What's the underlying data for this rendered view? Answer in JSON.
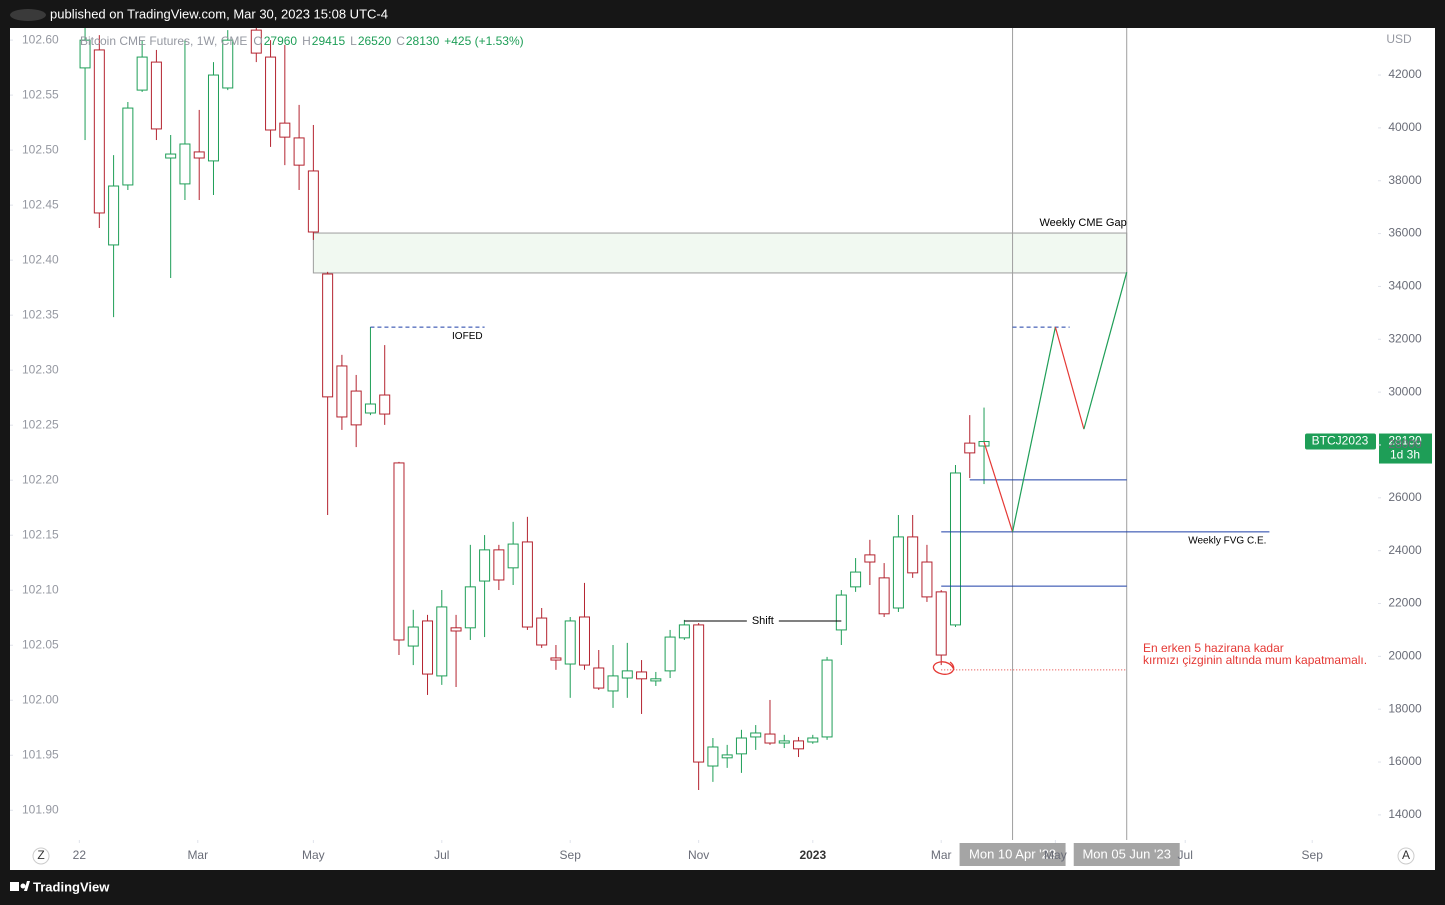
{
  "header": {
    "text": "published on TradingView.com, Mar 30, 2023 15:08 UTC-4"
  },
  "footer": {
    "brand": "TradingView"
  },
  "controls": {
    "left": "Z",
    "right": "A"
  },
  "chart_data": {
    "type": "candlestick",
    "name": "Bitcoin CME Futures, 1W, CME",
    "legend": {
      "ohlc": [
        {
          "label": "O",
          "value": 27960
        },
        {
          "label": "H",
          "value": 29415
        },
        {
          "label": "L",
          "value": 26520
        },
        {
          "label": "C",
          "value": 28130
        }
      ],
      "change": "+425 (+1.53%)"
    },
    "y_unit": "USD",
    "up_color": "#1e9e57",
    "down_color": "#b4232f",
    "x": [
      0,
      1,
      2,
      3,
      4,
      5,
      6,
      7,
      8,
      9,
      10,
      12,
      13,
      14,
      15,
      16,
      17,
      18,
      19,
      20,
      21,
      22,
      23,
      24,
      25,
      26,
      27,
      28,
      29,
      30,
      31,
      32,
      33,
      34,
      35,
      36,
      37,
      38,
      39,
      40,
      41,
      42,
      43,
      44,
      45,
      46,
      47,
      48,
      49,
      50,
      51,
      52,
      53,
      54,
      55,
      56,
      57,
      58,
      59,
      60,
      61,
      62,
      63
    ],
    "open": [
      42270,
      42950,
      35570,
      37840,
      41430,
      42490,
      38860,
      37880,
      39090,
      38750,
      41510,
      43700,
      42680,
      40180,
      39620,
      38370,
      34470,
      30990,
      30040,
      29210,
      29890,
      27320,
      20390,
      21340,
      19260,
      21080,
      21080,
      22850,
      24030,
      23350,
      24330,
      21450,
      19940,
      19710,
      21490,
      19560,
      18690,
      19180,
      19410,
      19070,
      19450,
      20700,
      21190,
      15850,
      16160,
      16310,
      16950,
      17060,
      16720,
      16800,
      16760,
      16950,
      21000,
      22630,
      23840,
      22970,
      21830,
      24520,
      23570,
      22440,
      21190,
      28070,
      27960
    ],
    "high": [
      43780,
      43510,
      38970,
      40980,
      43320,
      42950,
      39730,
      43320,
      40680,
      42490,
      43700,
      43780,
      43320,
      43140,
      40870,
      40110,
      34550,
      31410,
      30650,
      32460,
      31780,
      27360,
      21760,
      21570,
      22510,
      21570,
      24220,
      24590,
      24220,
      25090,
      25280,
      21830,
      20430,
      21490,
      22780,
      20240,
      20430,
      20510,
      19860,
      19410,
      21000,
      21380,
      21260,
      16910,
      16650,
      17220,
      17400,
      18350,
      17030,
      16950,
      17030,
      19980,
      22510,
      23720,
      24410,
      23530,
      25350,
      25350,
      24220,
      22510,
      27240,
      29130,
      29415
    ],
    "low": [
      39540,
      36210,
      32840,
      37650,
      41360,
      39540,
      34320,
      37270,
      37270,
      37460,
      41430,
      42490,
      39280,
      38590,
      37650,
      35760,
      25350,
      28570,
      27920,
      29130,
      28760,
      20050,
      19670,
      18540,
      18920,
      18840,
      20620,
      20730,
      22510,
      22700,
      21000,
      20320,
      19490,
      18430,
      19490,
      18730,
      18050,
      18430,
      17820,
      18880,
      19180,
      20620,
      14940,
      15250,
      15780,
      15590,
      16460,
      16650,
      16530,
      16190,
      16690,
      16840,
      20430,
      22440,
      22700,
      21490,
      21680,
      22970,
      22060,
      19670,
      21110,
      26750,
      26520
    ],
    "close": [
      43320,
      36780,
      37800,
      40750,
      42680,
      39960,
      39010,
      39390,
      38860,
      42000,
      43320,
      42830,
      39920,
      39650,
      38590,
      36060,
      29820,
      29060,
      28760,
      29550,
      29170,
      20620,
      21110,
      19330,
      21870,
      20960,
      22630,
      24030,
      22890,
      24250,
      21110,
      20430,
      19860,
      21340,
      19670,
      18800,
      19260,
      19450,
      19150,
      19150,
      20730,
      21190,
      16000,
      16570,
      16270,
      16910,
      17100,
      16720,
      16800,
      16500,
      16910,
      19860,
      22320,
      23190,
      23570,
      21610,
      24520,
      23160,
      22250,
      20050,
      26940,
      27700,
      28130
    ],
    "xlim": [
      -5.26,
      90.61
    ],
    "xticks": [
      {
        "value": -0.4,
        "label": "22"
      },
      {
        "value": 7.9,
        "label": "Mar"
      },
      {
        "value": 16,
        "label": "May"
      },
      {
        "value": 25,
        "label": "Jul"
      },
      {
        "value": 34,
        "label": "Sep"
      },
      {
        "value": 43,
        "label": "Nov"
      },
      {
        "value": 51,
        "label": "2023"
      },
      {
        "value": 60,
        "label": "Mar"
      },
      {
        "value": 68,
        "label": "May"
      },
      {
        "value": 77.1,
        "label": "Jul"
      },
      {
        "value": 86,
        "label": "Sep"
      }
    ],
    "ylim": [
      13050,
      43780
    ],
    "yticks": [
      14000,
      16000,
      18000,
      20000,
      22000,
      24000,
      26000,
      28000,
      30000,
      32000,
      34000,
      36000,
      38000,
      40000,
      42000
    ],
    "y2lim": [
      101.873,
      102.611
    ],
    "y2ticks": [
      {
        "value": 101.9,
        "label": "101.90"
      },
      {
        "value": 101.95,
        "label": "101.95"
      },
      {
        "value": 102.0,
        "label": "102.00"
      },
      {
        "value": 102.05,
        "label": "102.05"
      },
      {
        "value": 102.1,
        "label": "102.10"
      },
      {
        "value": 102.15,
        "label": "102.15"
      },
      {
        "value": 102.2,
        "label": "102.20"
      },
      {
        "value": 102.25,
        "label": "102.25"
      },
      {
        "value": 102.3,
        "label": "102.30"
      },
      {
        "value": 102.35,
        "label": "102.35"
      },
      {
        "value": 102.4,
        "label": "102.40"
      },
      {
        "value": 102.45,
        "label": "102.45"
      },
      {
        "value": 102.5,
        "label": "102.50"
      },
      {
        "value": 102.55,
        "label": "102.55"
      },
      {
        "value": 102.6,
        "label": "102.60"
      }
    ],
    "price_tag": {
      "symbol": "BTCJ2023",
      "countdown": "1d 3h",
      "color": "#1e9e57"
    },
    "drawings": {
      "cme_gap": {
        "label": "Weekly CME Gap",
        "x": [
          16,
          73
        ],
        "price": [
          36020,
          34510
        ]
      },
      "iofed": {
        "label": "IOFED",
        "x": [
          20,
          28
        ],
        "price": 32460,
        "color": "#1c3fa8"
      },
      "shift": {
        "label": "Shift",
        "x": [
          42,
          53
        ],
        "price": 21340,
        "color": "#000000"
      },
      "fvg": {
        "label": "Weekly FVG C.E.",
        "x": [
          60,
          83
        ],
        "price": 24710,
        "color": "#1c3fa8"
      },
      "levels": [
        {
          "x": [
            62,
            73
          ],
          "price": 26680,
          "color": "#1c3fa8",
          "style": "solid"
        },
        {
          "x": [
            60,
            73
          ],
          "price": 22660,
          "color": "#1c3fa8",
          "style": "solid"
        },
        {
          "x": [
            65,
            69
          ],
          "price": 32460,
          "color": "#1c3fa8",
          "style": "dashed"
        },
        {
          "x": [
            60,
            73
          ],
          "price": 19490,
          "color": "#e53935",
          "style": "dotted"
        }
      ],
      "projection": {
        "x": [
          63,
          65,
          68,
          70,
          73
        ],
        "price": [
          28110,
          24710,
          32460,
          28600,
          34540
        ],
        "colors": [
          "#e53935",
          "#1e9e57",
          "#e53935",
          "#1e9e57"
        ]
      },
      "note": {
        "lines": [
          "En erken 5 hazirana kadar",
          "kırmızı çizginin altında mum kapatmamalı."
        ],
        "color": "#e53935"
      },
      "markers": [
        {
          "x": 65,
          "label": "Mon 10 Apr '23"
        },
        {
          "x": 73,
          "label": "Mon 05 Jun '23"
        }
      ]
    }
  }
}
